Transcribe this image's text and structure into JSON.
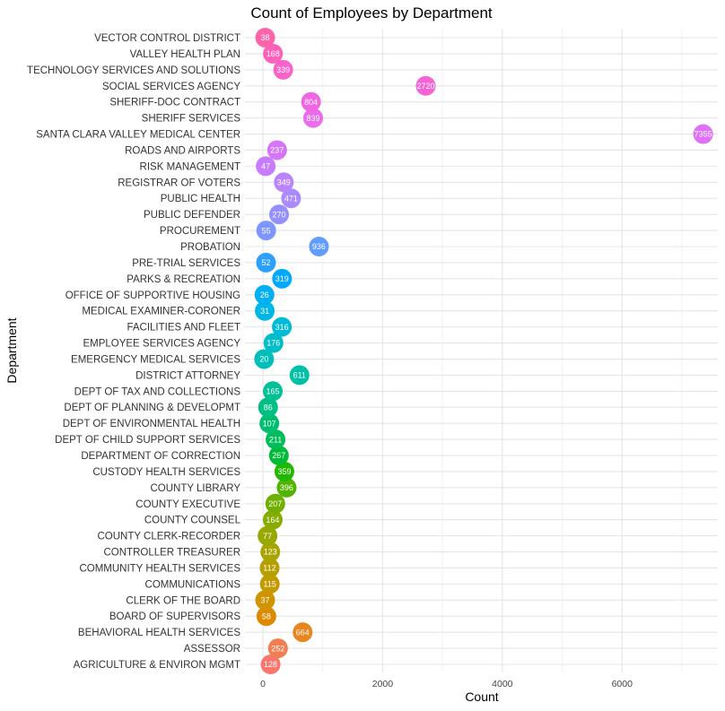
{
  "chart_data": {
    "type": "scatter",
    "title": "Count of Employees by Department",
    "xlabel": "Count",
    "ylabel": "Department",
    "xlim": [
      -300,
      7600
    ],
    "xticks": [
      0,
      2000,
      4000,
      6000
    ],
    "grid": true,
    "legend": "none",
    "categories": [
      "AGRICULTURE & ENVIRON MGMT",
      "ASSESSOR",
      "BEHAVIORAL HEALTH SERVICES",
      "BOARD OF SUPERVISORS",
      "CLERK OF THE BOARD",
      "COMMUNICATIONS",
      "COMMUNITY HEALTH SERVICES",
      "CONTROLLER TREASURER",
      "COUNTY CLERK-RECORDER",
      "COUNTY COUNSEL",
      "COUNTY EXECUTIVE",
      "COUNTY LIBRARY",
      "CUSTODY HEALTH SERVICES",
      "DEPARTMENT OF CORRECTION",
      "DEPT OF CHILD SUPPORT SERVICES",
      "DEPT OF ENVIRONMENTAL HEALTH",
      "DEPT OF PLANNING & DEVELOPMT",
      "DEPT OF TAX AND COLLECTIONS",
      "DISTRICT ATTORNEY",
      "EMERGENCY MEDICAL SERVICES",
      "EMPLOYEE SERVICES AGENCY",
      "FACILITIES AND FLEET",
      "MEDICAL EXAMINER-CORONER",
      "OFFICE OF SUPPORTIVE HOUSING",
      "PARKS & RECREATION",
      "PRE-TRIAL SERVICES",
      "PROBATION",
      "PROCUREMENT",
      "PUBLIC DEFENDER",
      "PUBLIC HEALTH",
      "REGISTRAR OF VOTERS",
      "RISK MANAGEMENT",
      "ROADS AND AIRPORTS",
      "SANTA CLARA VALLEY MEDICAL CENTER",
      "SHERIFF SERVICES",
      "SHERIFF-DOC CONTRACT",
      "SOCIAL SERVICES AGENCY",
      "TECHNOLOGY SERVICES AND SOLUTIONS",
      "VALLEY HEALTH PLAN",
      "VECTOR CONTROL DISTRICT"
    ],
    "values": [
      128,
      252,
      664,
      58,
      37,
      115,
      112,
      123,
      77,
      164,
      207,
      396,
      359,
      267,
      211,
      107,
      86,
      165,
      611,
      20,
      176,
      316,
      31,
      26,
      319,
      52,
      936,
      55,
      270,
      471,
      349,
      47,
      237,
      7355,
      839,
      804,
      2720,
      339,
      168,
      38
    ],
    "colors": [
      "#F8766D",
      "#F17D52",
      "#E7851E",
      "#DC8A00",
      "#CF9400",
      "#C49A00",
      "#B79F00",
      "#A9A400",
      "#99A800",
      "#86AC00",
      "#70B000",
      "#53B400",
      "#22B800",
      "#00BA38",
      "#00BC59",
      "#00BE70",
      "#00BF84",
      "#00C096",
      "#00C0A7",
      "#00BFB8",
      "#00BDC8",
      "#00BBD8",
      "#00B6E6",
      "#00B0F2",
      "#00A9FF",
      "#2DA0FF",
      "#619CFF",
      "#7E96FF",
      "#9590FF",
      "#A98AFF",
      "#BA84FF",
      "#C77CFF",
      "#D475FA",
      "#DF70F8",
      "#E96BEE",
      "#F066E3",
      "#F563D7",
      "#FA62C9",
      "#FD61BA",
      "#FF64AA"
    ]
  }
}
